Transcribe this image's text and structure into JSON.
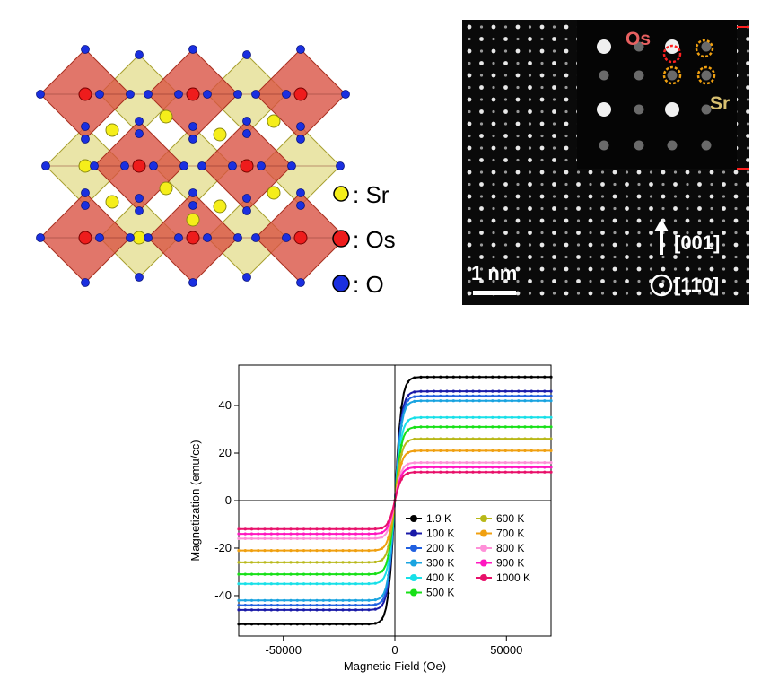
{
  "crystal_key": [
    {
      "label": ": Sr",
      "color": "#f5ee1a"
    },
    {
      "label": ": Os",
      "color": "#ee1c1c"
    },
    {
      "label": ": O",
      "color": "#1a2fe0"
    }
  ],
  "stem": {
    "scale_bar_label": "1 nm",
    "os_label": "Os",
    "sr_label": "Sr",
    "dir_001": "[001]",
    "dir_110": "[110]"
  },
  "chart_data": {
    "type": "line",
    "xlabel": "Magnetic Field (Oe)",
    "ylabel": "Magnetization (emu/cc)",
    "xlim": [
      -70000,
      70000
    ],
    "ylim": [
      -57,
      57
    ],
    "xticks": [
      -50000,
      0,
      50000
    ],
    "yticks": [
      -40,
      -20,
      0,
      20,
      40
    ],
    "xtick_labels": [
      "-50000",
      "0",
      "50000"
    ],
    "ytick_labels": [
      "-40",
      "-20",
      "0",
      "20",
      "40"
    ],
    "legend_position": "lower-right",
    "series": [
      {
        "name": "1.9 K",
        "color": "#000000",
        "saturation": 52
      },
      {
        "name": "100 K",
        "color": "#1a1aa8",
        "saturation": 46
      },
      {
        "name": "200 K",
        "color": "#2160e0",
        "saturation": 44
      },
      {
        "name": "300 K",
        "color": "#1aa4e0",
        "saturation": 42
      },
      {
        "name": "400 K",
        "color": "#18e0e8",
        "saturation": 35
      },
      {
        "name": "500 K",
        "color": "#18e018",
        "saturation": 31
      },
      {
        "name": "600 K",
        "color": "#b8b818",
        "saturation": 26
      },
      {
        "name": "700 K",
        "color": "#f0a010",
        "saturation": 21
      },
      {
        "name": "800 K",
        "color": "#ff90d8",
        "saturation": 16
      },
      {
        "name": "900 K",
        "color": "#ff18c0",
        "saturation": 14
      },
      {
        "name": "1000 K",
        "color": "#e8106a",
        "saturation": 12
      }
    ]
  }
}
